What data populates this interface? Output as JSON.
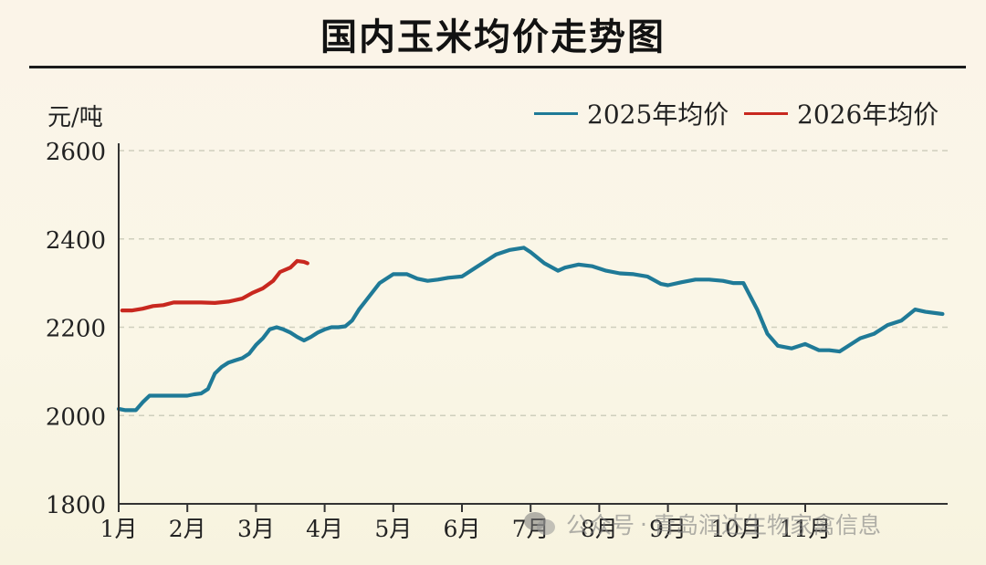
{
  "title": "国内玉米均价走势图",
  "unit_label": "元/吨",
  "watermark": {
    "source": "公众号",
    "separator": "·",
    "account": "青岛润达生物家禽信息"
  },
  "colors": {
    "series_2025": "#1f7a97",
    "series_2026": "#c8281f",
    "grid": "#cfcfbd",
    "axis": "#333333"
  },
  "chart_data": {
    "type": "line",
    "title": "国内玉米均价走势图",
    "ylabel": "元/吨",
    "xlabel": "",
    "x_ticks": [
      "1月",
      "2月",
      "3月",
      "4月",
      "5月",
      "6月",
      "7月",
      "8月",
      "9月",
      "10月",
      "11月"
    ],
    "ylim": [
      1800,
      2600
    ],
    "y_ticks": [
      1800,
      2000,
      2200,
      2400,
      2600
    ],
    "grid": true,
    "legend_position": "top-right",
    "series": [
      {
        "name": "2025年均价",
        "color": "#1f7a97",
        "x": [
          1.0,
          1.1,
          1.25,
          1.35,
          1.45,
          1.6,
          1.75,
          1.9,
          2.0,
          2.1,
          2.2,
          2.3,
          2.4,
          2.5,
          2.6,
          2.7,
          2.8,
          2.9,
          3.0,
          3.1,
          3.2,
          3.3,
          3.4,
          3.5,
          3.6,
          3.7,
          3.8,
          3.9,
          4.0,
          4.1,
          4.2,
          4.3,
          4.4,
          4.5,
          4.6,
          4.8,
          5.0,
          5.2,
          5.35,
          5.5,
          5.65,
          5.8,
          6.0,
          6.2,
          6.4,
          6.5,
          6.7,
          6.9,
          7.0,
          7.2,
          7.4,
          7.5,
          7.7,
          7.9,
          8.1,
          8.3,
          8.5,
          8.7,
          8.9,
          9.0,
          9.2,
          9.4,
          9.6,
          9.8,
          9.95,
          10.1,
          10.3,
          10.45,
          10.6,
          10.8,
          11.0,
          11.2,
          11.35,
          11.5,
          11.65,
          11.8,
          12.0,
          12.2,
          12.4,
          12.6,
          12.75,
          13.0
        ],
        "y": [
          2015,
          2012,
          2012,
          2030,
          2045,
          2045,
          2045,
          2045,
          2045,
          2048,
          2050,
          2060,
          2095,
          2110,
          2120,
          2125,
          2130,
          2140,
          2160,
          2175,
          2195,
          2200,
          2195,
          2188,
          2178,
          2170,
          2178,
          2188,
          2195,
          2200,
          2200,
          2202,
          2215,
          2240,
          2260,
          2300,
          2320,
          2320,
          2310,
          2305,
          2308,
          2312,
          2315,
          2335,
          2355,
          2365,
          2375,
          2380,
          2370,
          2345,
          2328,
          2335,
          2342,
          2338,
          2328,
          2322,
          2320,
          2315,
          2298,
          2295,
          2302,
          2308,
          2308,
          2305,
          2300,
          2300,
          2240,
          2185,
          2158,
          2152,
          2162,
          2148,
          2148,
          2145,
          2160,
          2175,
          2185,
          2205,
          2215,
          2240,
          2235,
          2230
        ]
      },
      {
        "name": "2026年均价",
        "color": "#c8281f",
        "x": [
          1.05,
          1.2,
          1.35,
          1.5,
          1.65,
          1.8,
          2.0,
          2.2,
          2.4,
          2.6,
          2.8,
          2.95,
          3.1,
          3.25,
          3.35,
          3.5,
          3.6,
          3.7,
          3.75
        ],
        "y": [
          2238,
          2238,
          2242,
          2248,
          2250,
          2256,
          2256,
          2256,
          2255,
          2258,
          2265,
          2278,
          2288,
          2305,
          2325,
          2335,
          2350,
          2348,
          2345
        ]
      }
    ]
  }
}
